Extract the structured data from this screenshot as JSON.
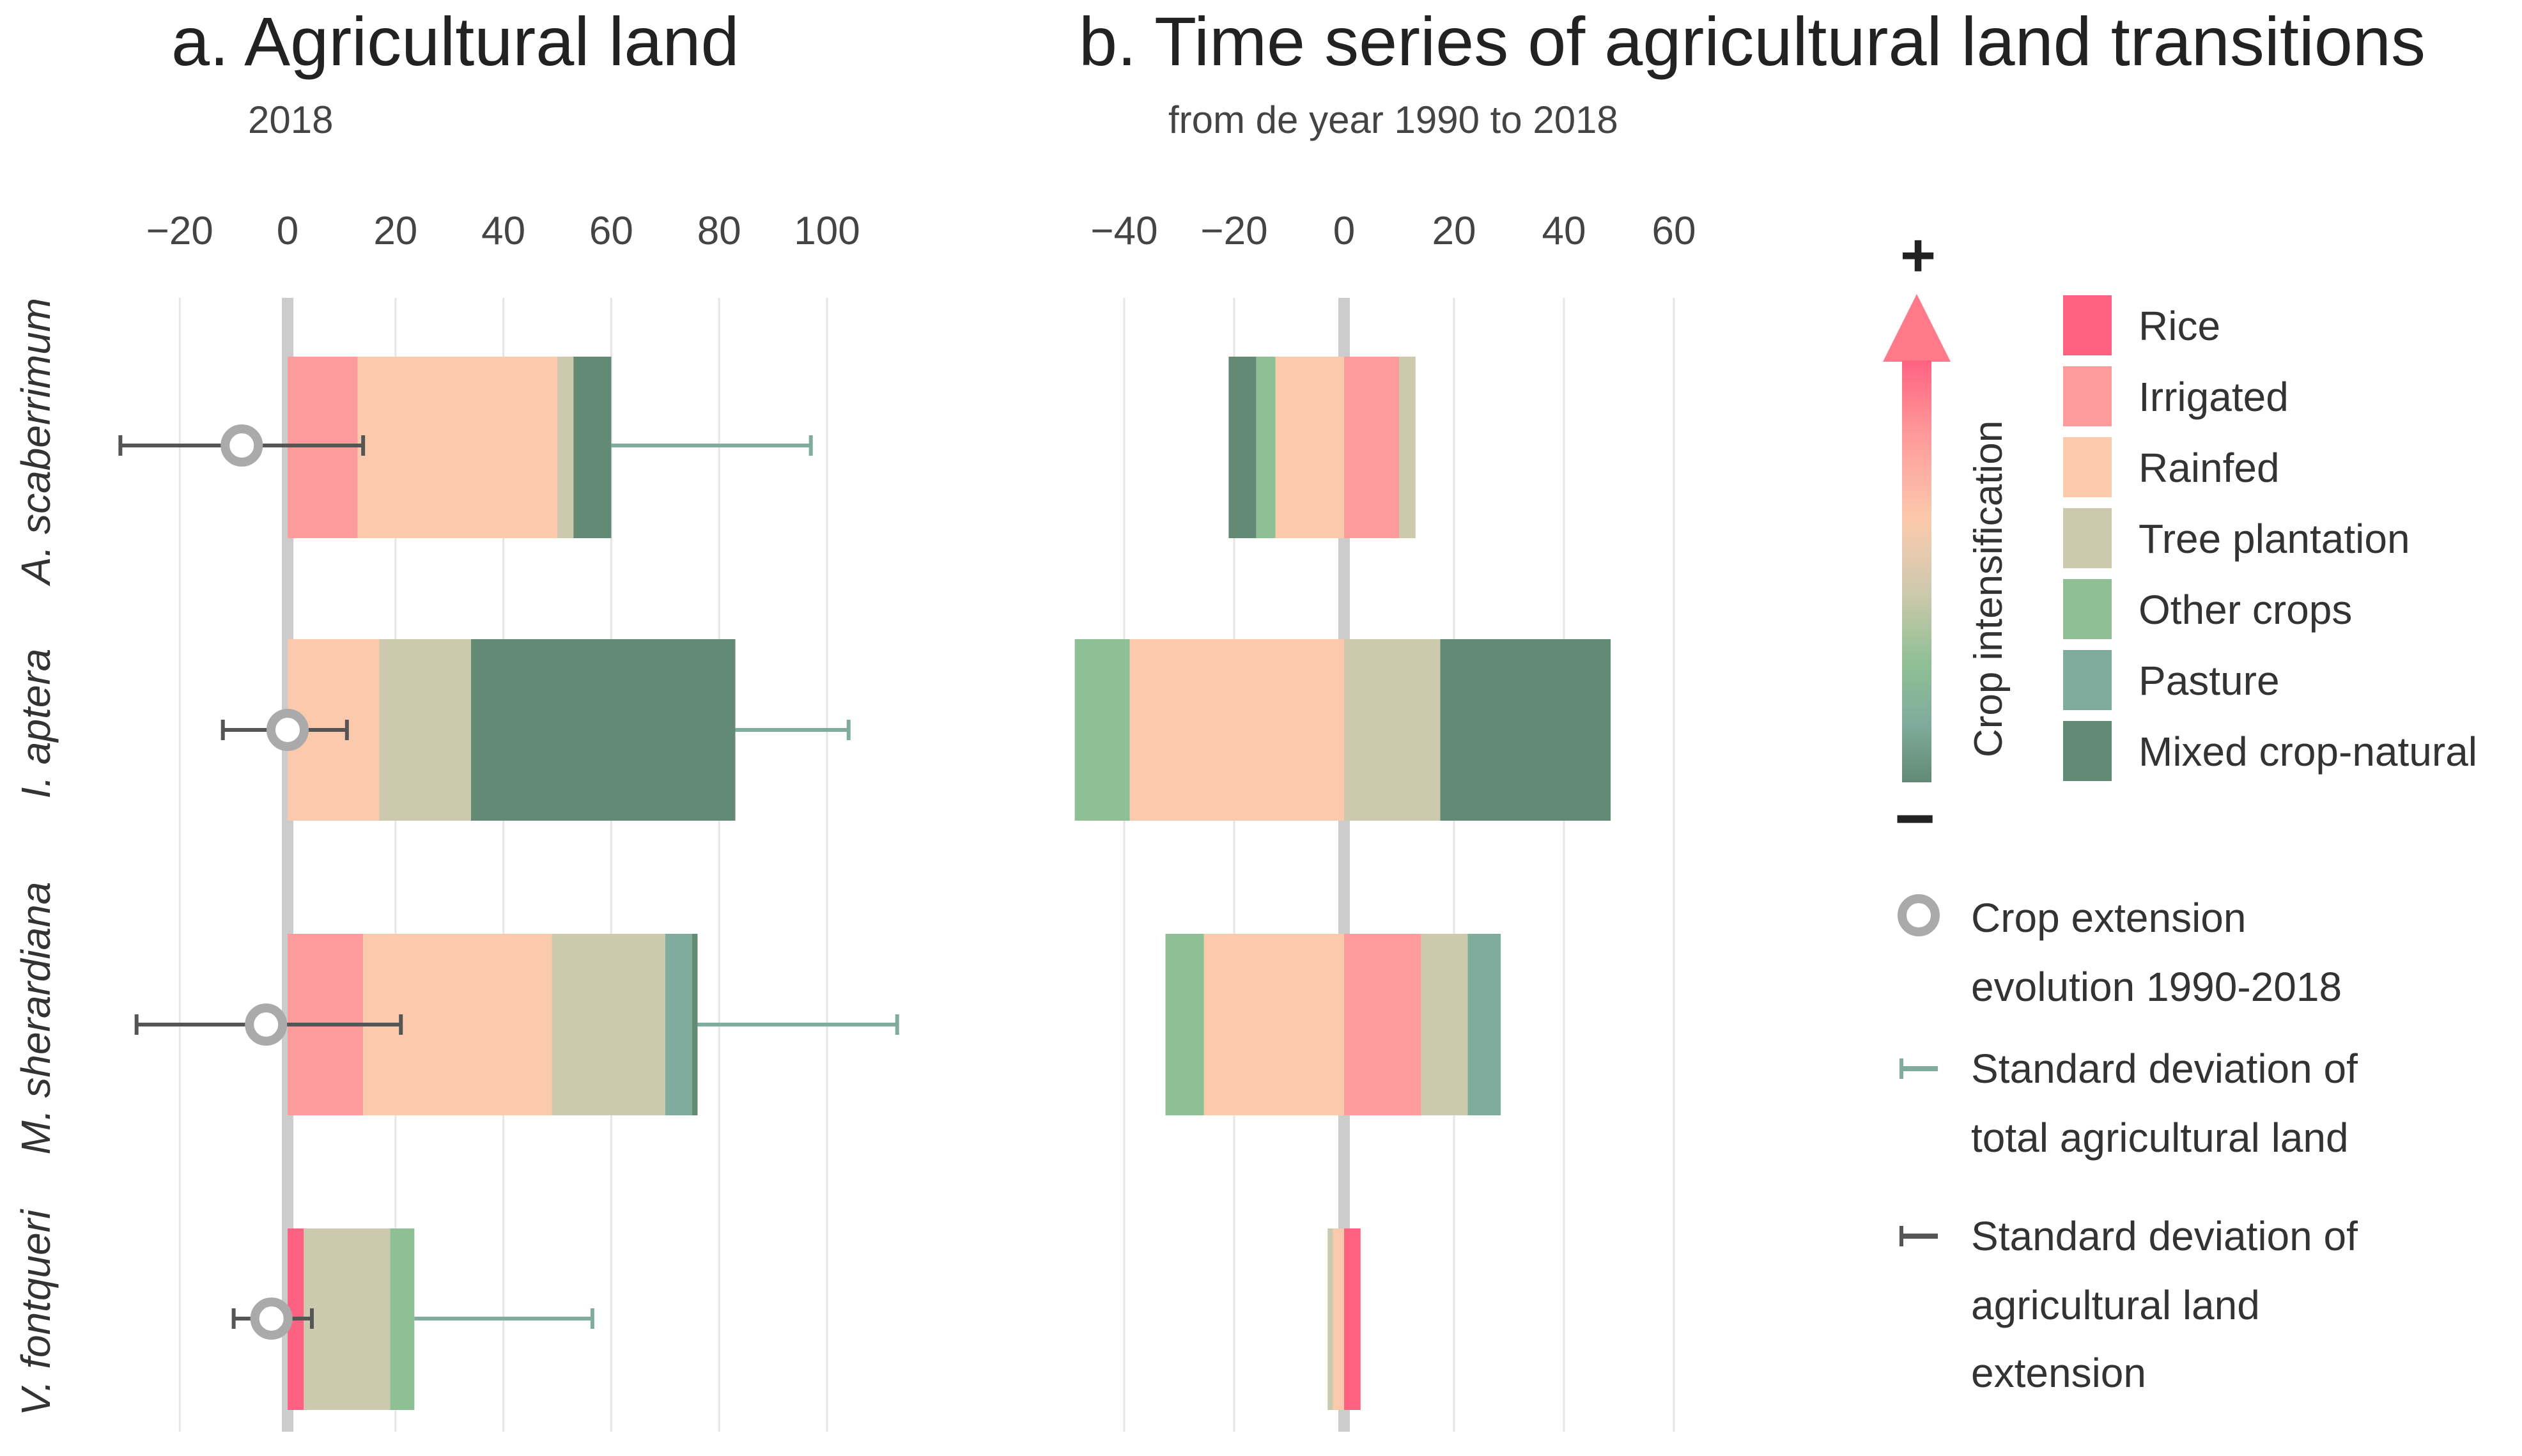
{
  "colors": {
    "Rice": "#ff6281",
    "Irrigated": "#fe9b9b",
    "Rainfed": "#fbcaad",
    "Tree plantation": "#cdc9ae",
    "Other crops": "#8fbf94",
    "Pasture": "#7fac9d",
    "Mixed crop-natural": "#628a74",
    "sd_total": "#7fac9d",
    "sd_extension": "#555555",
    "marker": "#aaaaaa"
  },
  "legend": {
    "scale_plus": "+",
    "scale_minus": "−",
    "scale_label": "Crop intensification",
    "categories": [
      "Rice",
      "Irrigated",
      "Rainfed",
      "Tree plantation",
      "Other crops",
      "Pasture",
      "Mixed crop-natural"
    ],
    "marker_line1": "Crop extension",
    "marker_line2": "evolution 1990-2018",
    "sd_total_line1": "Standard deviation of",
    "sd_total_line2": "total agricultural land",
    "sd_ext_line1": "Standard deviation of",
    "sd_ext_line2": "agricultural land",
    "sd_ext_line3": "extension"
  },
  "chart_data": [
    {
      "type": "bar",
      "orientation": "horizontal",
      "stacked": true,
      "title": "a. Agricultural land",
      "subtitle": "2018",
      "xlim": [
        -30,
        110
      ],
      "ticks": [
        -20,
        0,
        20,
        40,
        60,
        80,
        100
      ],
      "tick_labels": [
        "−20",
        "0",
        "20",
        "40",
        "60",
        "80",
        "100"
      ],
      "categories": [
        "A. scaberrimum",
        "I. aptera",
        "M. sherardiana",
        "V. fontqueri"
      ],
      "series": [
        {
          "name": "Rice",
          "values": [
            0,
            0,
            0,
            3
          ]
        },
        {
          "name": "Irrigated",
          "values": [
            13,
            0,
            14,
            0
          ]
        },
        {
          "name": "Rainfed",
          "values": [
            37,
            17,
            35,
            0
          ]
        },
        {
          "name": "Tree plantation",
          "values": [
            3,
            17,
            21,
            16
          ]
        },
        {
          "name": "Other crops",
          "values": [
            0,
            0,
            0,
            4.5
          ]
        },
        {
          "name": "Pasture",
          "values": [
            0,
            0,
            5,
            0
          ]
        },
        {
          "name": "Mixed crop-natural",
          "values": [
            7,
            49,
            1,
            0
          ]
        }
      ],
      "crop_extension_evolution": [
        -8.5,
        0,
        -4,
        -3
      ],
      "sd_extension": [
        [
          -31,
          14
        ],
        [
          -12,
          11
        ],
        [
          -28,
          21
        ],
        [
          -10,
          4.5
        ]
      ],
      "sd_total_upper": [
        97,
        104,
        113,
        56.5
      ]
    },
    {
      "type": "bar",
      "orientation": "horizontal",
      "stacked": true,
      "diverging": true,
      "title": "b. Time series of agricultural land transitions",
      "subtitle": "from de year 1990 to 2018",
      "xlim": [
        -50,
        66
      ],
      "ticks": [
        -40,
        -20,
        0,
        20,
        40,
        60
      ],
      "tick_labels": [
        "−40",
        "−20",
        "0",
        "20",
        "40",
        "60"
      ],
      "categories": [
        "A. scaberrimum",
        "I. aptera",
        "M. sherardiana",
        "V. fontqueri"
      ],
      "series": [
        {
          "name": "Rice",
          "values": [
            0,
            0,
            0,
            3
          ]
        },
        {
          "name": "Irrigated",
          "values": [
            10,
            0,
            14,
            0
          ]
        },
        {
          "name": "Rainfed",
          "values": [
            -12.5,
            -39,
            -25.5,
            -2
          ]
        },
        {
          "name": "Tree plantation",
          "values": [
            3,
            17.5,
            8.5,
            -1
          ]
        },
        {
          "name": "Other crops",
          "values": [
            -3.5,
            -10,
            -7,
            0
          ]
        },
        {
          "name": "Pasture",
          "values": [
            0,
            0,
            6,
            0
          ]
        },
        {
          "name": "Mixed crop-natural",
          "values": [
            -5,
            31,
            0,
            0
          ]
        }
      ]
    }
  ]
}
